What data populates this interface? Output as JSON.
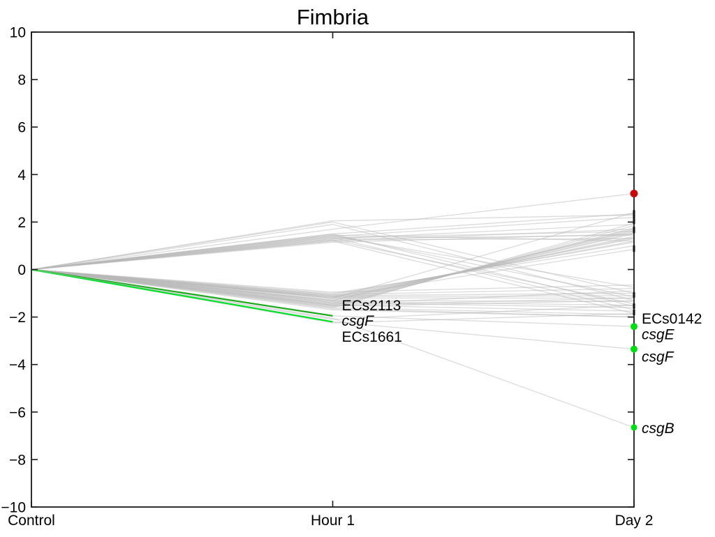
{
  "figure": {
    "background": "#ffffff"
  },
  "chart_data": {
    "type": "line",
    "title": "Fimbria",
    "x_categories": [
      "Control",
      "Hour 1",
      "Day 2"
    ],
    "ylim": [
      -10,
      10
    ],
    "y_ticks": [
      10,
      8,
      6,
      4,
      2,
      0,
      -2,
      -4,
      -6,
      -8,
      -10
    ],
    "grid": false,
    "legend": "none",
    "colors": {
      "gray_line": "#b8b8b8",
      "green_dark": "#1faa1f",
      "green_bright": "#00e02a",
      "dot_green": "#00dd11",
      "dot_red": "#c40a0a",
      "axis": "#1a1a1a",
      "dash_marker": "#111111"
    },
    "series": [
      {
        "name": "",
        "values": [
          0,
          1.15,
          1.5
        ]
      },
      {
        "name": "",
        "values": [
          0,
          1.2,
          1.7
        ]
      },
      {
        "name": "",
        "values": [
          0,
          1.25,
          1.3
        ]
      },
      {
        "name": "",
        "values": [
          0,
          1.3,
          1.9
        ]
      },
      {
        "name": "",
        "values": [
          0,
          1.35,
          1.6
        ]
      },
      {
        "name": "",
        "values": [
          0,
          1.4,
          2.2
        ]
      },
      {
        "name": "",
        "values": [
          0,
          1.45,
          1.2
        ]
      },
      {
        "name": "",
        "values": [
          0,
          1.5,
          2.35
        ]
      },
      {
        "name": "",
        "values": [
          0,
          1.3,
          1.45
        ]
      },
      {
        "name": "",
        "values": [
          0,
          2.05,
          2.3
        ]
      },
      {
        "name": "",
        "values": [
          0,
          2.0,
          -1.0
        ]
      },
      {
        "name": "",
        "values": [
          0,
          1.9,
          -1.3
        ]
      },
      {
        "name": "",
        "values": [
          0,
          1.5,
          -1.55
        ]
      },
      {
        "name": "",
        "values": [
          0,
          1.4,
          -0.75
        ]
      },
      {
        "name": "",
        "values": [
          0,
          1.35,
          -1.7
        ]
      },
      {
        "name": "",
        "values": [
          0,
          1.25,
          -1.45
        ]
      },
      {
        "name": "",
        "values": [
          0,
          1.2,
          -1.85
        ]
      },
      {
        "name": "",
        "values": [
          0,
          1.45,
          -1.15
        ]
      },
      {
        "name": "",
        "values": [
          0,
          -1.0,
          1.0
        ]
      },
      {
        "name": "",
        "values": [
          0,
          -1.05,
          1.15
        ]
      },
      {
        "name": "",
        "values": [
          0,
          -1.1,
          1.2
        ]
      },
      {
        "name": "",
        "values": [
          0,
          -1.15,
          1.3
        ]
      },
      {
        "name": "",
        "values": [
          0,
          -1.2,
          1.35
        ]
      },
      {
        "name": "",
        "values": [
          0,
          -1.25,
          1.4
        ]
      },
      {
        "name": "",
        "values": [
          0,
          -1.3,
          1.5
        ]
      },
      {
        "name": "",
        "values": [
          0,
          -1.3,
          1.6
        ]
      },
      {
        "name": "",
        "values": [
          0,
          -1.35,
          1.55
        ]
      },
      {
        "name": "",
        "values": [
          0,
          -1.4,
          1.65
        ]
      },
      {
        "name": "",
        "values": [
          0,
          -1.45,
          1.7
        ]
      },
      {
        "name": "",
        "values": [
          0,
          -1.5,
          1.75
        ]
      },
      {
        "name": "",
        "values": [
          0,
          -1.55,
          1.85
        ]
      },
      {
        "name": "",
        "values": [
          0,
          -1.6,
          1.95
        ]
      },
      {
        "name": "",
        "values": [
          0,
          -1.2,
          2.4
        ]
      },
      {
        "name": "",
        "values": [
          0,
          -1.15,
          0.85
        ]
      },
      {
        "name": "",
        "values": [
          0,
          -0.95,
          -0.65
        ]
      },
      {
        "name": "",
        "values": [
          0,
          -1.05,
          -0.8
        ]
      },
      {
        "name": "",
        "values": [
          0,
          -1.1,
          -1.0
        ]
      },
      {
        "name": "",
        "values": [
          0,
          -1.15,
          -1.1
        ]
      },
      {
        "name": "",
        "values": [
          0,
          -1.2,
          -1.2
        ]
      },
      {
        "name": "",
        "values": [
          0,
          -1.3,
          -1.35
        ]
      },
      {
        "name": "",
        "values": [
          0,
          -1.35,
          -1.5
        ]
      },
      {
        "name": "",
        "values": [
          0,
          -1.4,
          -1.6
        ]
      },
      {
        "name": "",
        "values": [
          0,
          -1.5,
          -1.75
        ]
      },
      {
        "name": "",
        "values": [
          0,
          -1.6,
          -1.9
        ]
      },
      {
        "name": "",
        "values": [
          0,
          -1.7,
          -2.0
        ]
      },
      {
        "name": "",
        "values": [
          0,
          -1.55,
          -1.3
        ]
      },
      {
        "name": "",
        "values": [
          0,
          -1.45,
          -0.9
        ]
      },
      {
        "name": "",
        "values": [
          0,
          -2.1,
          -1.5
        ]
      },
      {
        "name": "ECs2113",
        "values": [
          0,
          -1.5,
          -1.2
        ]
      },
      {
        "name": "ECs1661",
        "values": [
          0,
          -2.25,
          -1.85
        ]
      },
      {
        "name": "ECs0142",
        "values": [
          0,
          -1.65,
          -2.0
        ]
      },
      {
        "name": "",
        "values": [
          0,
          1.7,
          3.2
        ],
        "dot": "#c40a0a",
        "dot_r": 5.5
      },
      {
        "name": "csgE",
        "values": [
          0,
          -1.95,
          -2.4
        ],
        "c1": "#1faa1f",
        "dot": "#00dd11",
        "dot_r": 5
      },
      {
        "name": "csgF",
        "values": [
          0,
          -2.2,
          -3.35
        ],
        "c1": "#00e02a",
        "dot": "#00dd11",
        "dot_r": 5
      },
      {
        "name": "csgB",
        "values": [
          0,
          -2.05,
          -6.65
        ],
        "dot": "#00dd11",
        "dot_r": 4.5
      }
    ],
    "annotations": [
      {
        "text": "ECs2113",
        "italic": false,
        "station": 1,
        "y": -1.5,
        "dx": 13
      },
      {
        "text": "csgF",
        "italic": true,
        "station": 1,
        "y": -2.15,
        "dx": 13
      },
      {
        "text": "ECs1661",
        "italic": false,
        "station": 1,
        "y": -2.82,
        "dx": 13
      },
      {
        "text": "ECs0142",
        "italic": false,
        "station": 2,
        "y": -2.05,
        "dx": 11
      },
      {
        "text": "csgE",
        "italic": true,
        "station": 2,
        "y": -2.72,
        "dx": 11
      },
      {
        "text": "csgF",
        "italic": true,
        "station": 2,
        "y": -3.65,
        "dx": 11
      },
      {
        "text": "csgB",
        "italic": true,
        "station": 2,
        "y": -6.67,
        "dx": 11
      }
    ],
    "axis_dash_values": [
      2.43,
      2.35,
      2.23,
      2.08,
      1.99,
      1.73,
      1.61,
      0.94,
      0.82,
      -1.03,
      -1.11,
      -1.5,
      -1.58,
      -1.76,
      -1.85
    ]
  }
}
